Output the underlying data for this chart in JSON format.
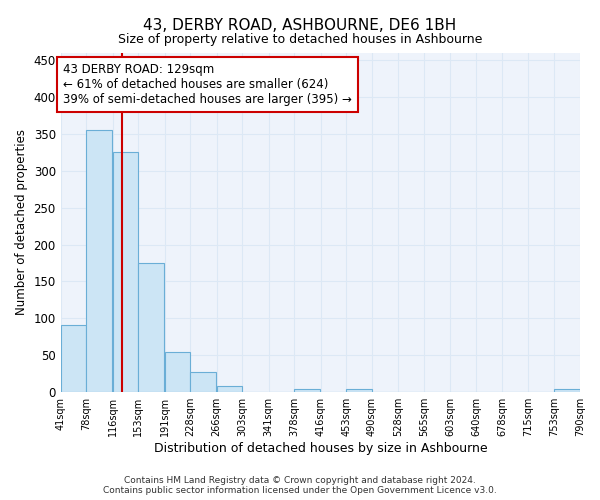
{
  "title": "43, DERBY ROAD, ASHBOURNE, DE6 1BH",
  "subtitle": "Size of property relative to detached houses in Ashbourne",
  "xlabel": "Distribution of detached houses by size in Ashbourne",
  "ylabel": "Number of detached properties",
  "bin_edges": [
    41,
    78,
    116,
    153,
    191,
    228,
    266,
    303,
    341,
    378,
    416,
    453,
    490,
    528,
    565,
    603,
    640,
    678,
    715,
    753,
    790
  ],
  "bar_heights": [
    91,
    355,
    325,
    175,
    54,
    27,
    8,
    0,
    0,
    5,
    0,
    5,
    0,
    0,
    0,
    0,
    0,
    0,
    0,
    5
  ],
  "bar_color": "#cce5f5",
  "bar_edge_color": "#6aaed6",
  "grid_color": "#dce8f5",
  "background_color": "#eef3fb",
  "property_size": 129,
  "red_line_color": "#cc0000",
  "annotation_line1": "43 DERBY ROAD: 129sqm",
  "annotation_line2": "← 61% of detached houses are smaller (624)",
  "annotation_line3": "39% of semi-detached houses are larger (395) →",
  "annotation_box_color": "#ffffff",
  "annotation_box_edge": "#cc0000",
  "footer_text": "Contains HM Land Registry data © Crown copyright and database right 2024.\nContains public sector information licensed under the Open Government Licence v3.0.",
  "ylim": [
    0,
    460
  ],
  "yticks": [
    0,
    50,
    100,
    150,
    200,
    250,
    300,
    350,
    400,
    450
  ]
}
